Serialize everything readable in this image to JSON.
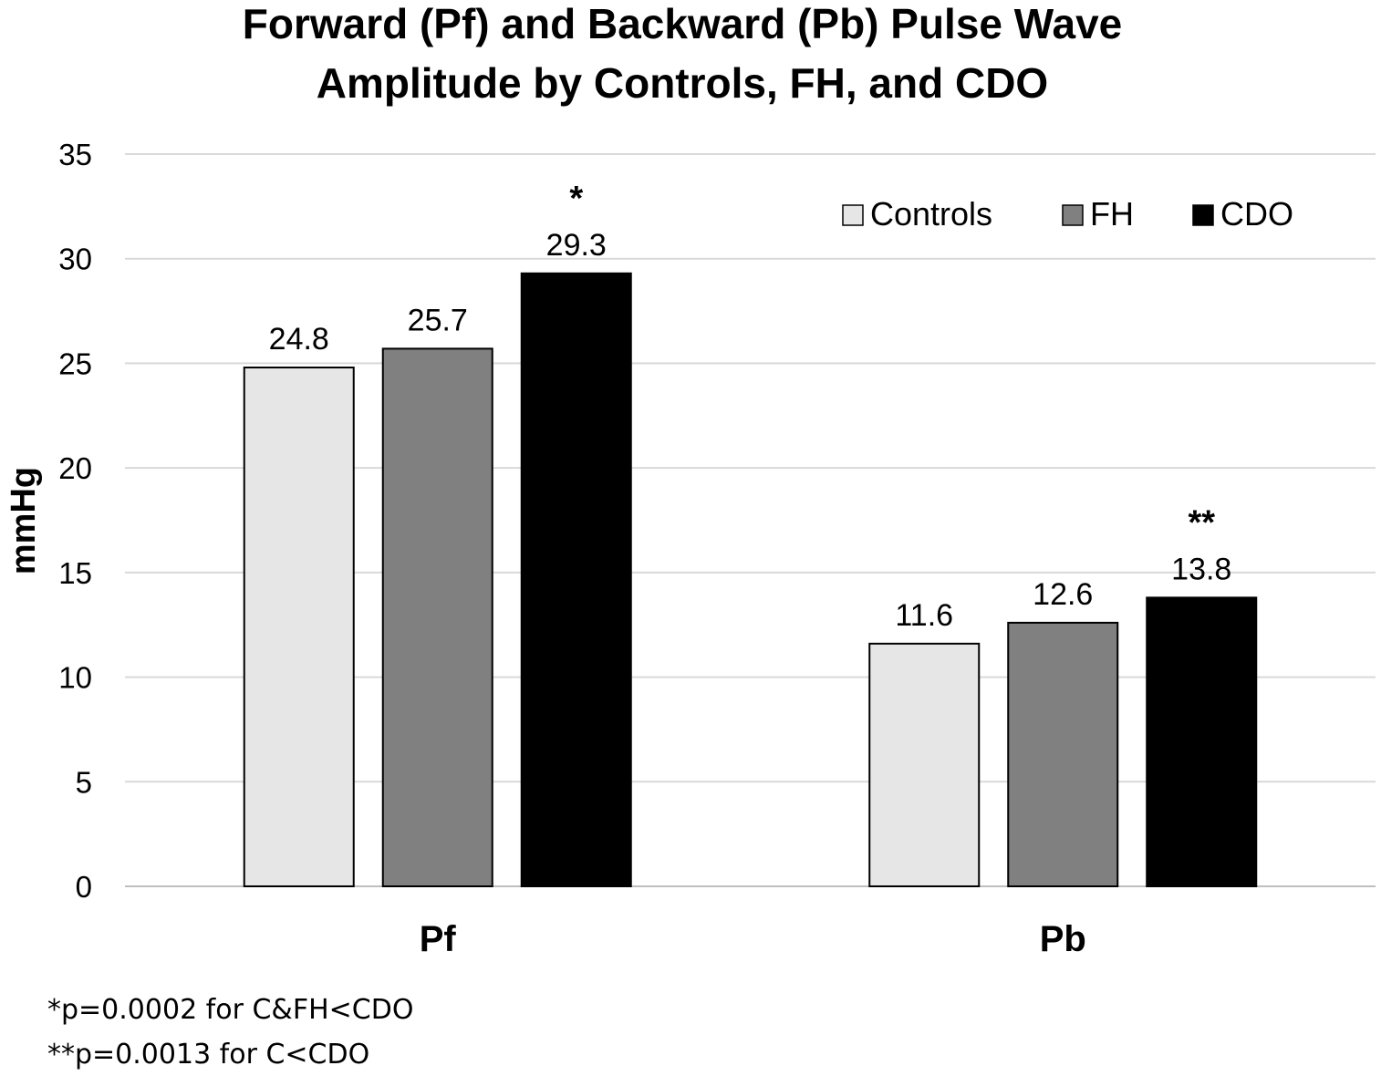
{
  "chart_data": {
    "type": "bar",
    "title": [
      "Forward (Pf) and Backward (Pb) Pulse Wave",
      "Amplitude by Controls, FH, and CDO"
    ],
    "xlabel": "",
    "ylabel": "mmHg",
    "ylim": [
      0,
      35
    ],
    "yticks": [
      0,
      5,
      10,
      15,
      20,
      25,
      30,
      35
    ],
    "grid": true,
    "legend_position": "top-right",
    "categories": [
      "Pf",
      "Pb"
    ],
    "series": [
      {
        "name": "Controls",
        "values": [
          24.8,
          11.6
        ],
        "value_labels": [
          "24.8",
          "11.6"
        ],
        "color": "#e6e6e6"
      },
      {
        "name": "FH",
        "values": [
          25.7,
          12.6
        ],
        "value_labels": [
          "25.7",
          "12.6"
        ],
        "color": "#808080"
      },
      {
        "name": "CDO",
        "values": [
          29.3,
          13.8
        ],
        "value_labels": [
          "29.3",
          "13.8"
        ],
        "color": "#000000"
      }
    ],
    "significance_marks": [
      "*",
      "**"
    ],
    "footnotes": [
      "*p=0.0002 for C&FH<CDO",
      "**p=0.0013 for C<CDO"
    ]
  }
}
